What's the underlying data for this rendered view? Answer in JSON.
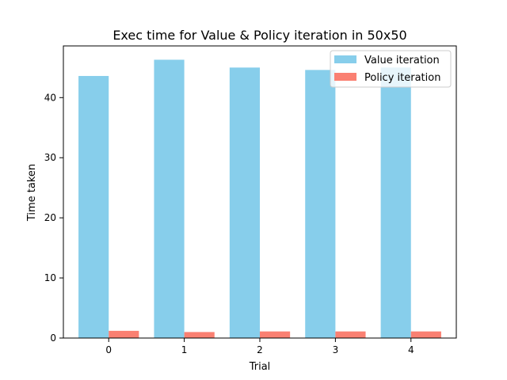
{
  "chart_data": {
    "type": "bar",
    "title": "Exec time for Value & Policy iteration in 50x50",
    "xlabel": "Trial",
    "ylabel": "Time taken",
    "categories": [
      "0",
      "1",
      "2",
      "3",
      "4"
    ],
    "series": [
      {
        "name": "Value iteration",
        "color": "#87ceeb",
        "values": [
          43.6,
          46.3,
          45.0,
          44.6,
          45.0
        ]
      },
      {
        "name": "Policy iteration",
        "color": "#fa8072",
        "values": [
          1.2,
          1.0,
          1.1,
          1.1,
          1.1
        ]
      }
    ],
    "yticks": [
      0,
      10,
      20,
      30,
      40
    ],
    "ylim": [
      0,
      48.6
    ],
    "grid": false,
    "legend_position": "top-right"
  }
}
